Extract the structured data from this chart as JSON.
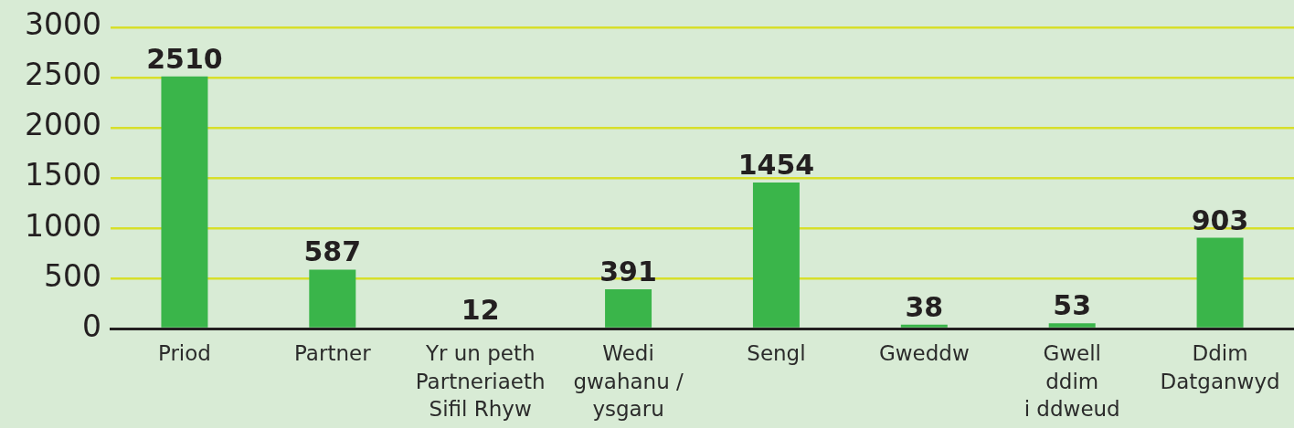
{
  "chart_data": {
    "type": "bar",
    "categories": [
      "Priod",
      "Partner",
      "Yr un peth\nPartneriaeth\nSifil Rhyw",
      "Wedi\ngwahanu /\nysgaru",
      "Sengl",
      "Gweddw",
      "Gwell\nddim\ni ddweud",
      "Ddim\nDatganwyd"
    ],
    "values": [
      2510,
      587,
      12,
      391,
      1454,
      38,
      53,
      903
    ],
    "color": "#3ab54a",
    "ylim": [
      0,
      3000
    ],
    "yticks": [
      0,
      500,
      1000,
      1500,
      2000,
      2500,
      3000
    ],
    "grid": "y",
    "data_labels": true,
    "legend": false
  }
}
